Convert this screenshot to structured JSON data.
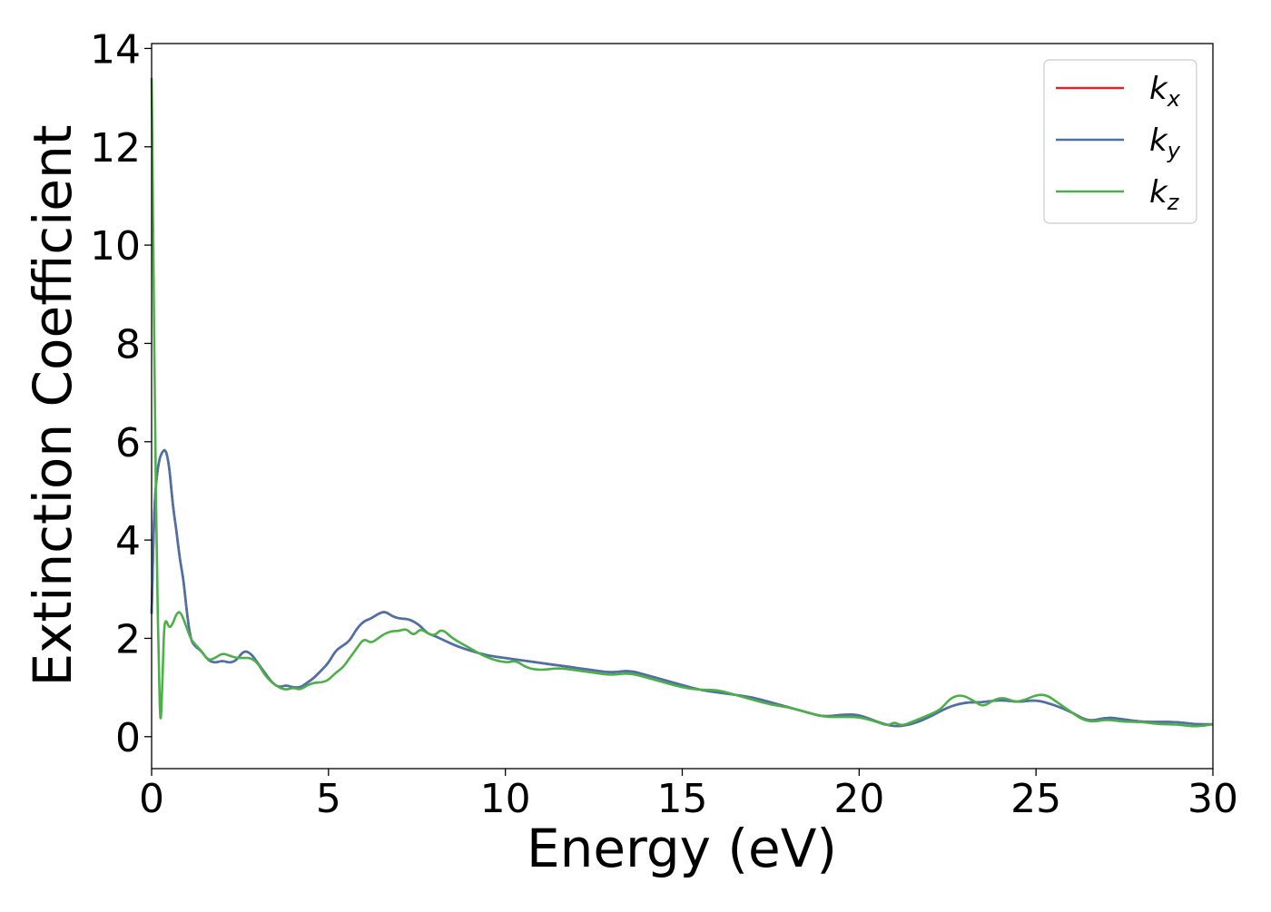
{
  "chart_data": {
    "type": "line",
    "xlabel": "Energy (eV)",
    "ylabel": "Extinction Coefficient",
    "xlim": [
      0,
      30
    ],
    "ylim": [
      -0.65,
      14.1
    ],
    "xticks": [
      0,
      5,
      10,
      15,
      20,
      25,
      30
    ],
    "yticks": [
      0,
      2,
      4,
      6,
      8,
      10,
      12,
      14
    ],
    "grid": false,
    "legend": "top-right",
    "series": [
      {
        "name": "k_x",
        "label_main": "k",
        "label_sub": "x",
        "color": "#d62728",
        "x": [
          0,
          0.05,
          0.1,
          0.2,
          0.3,
          0.4,
          0.5,
          0.6,
          0.7,
          0.8,
          0.9,
          1.0,
          1.1,
          1.2,
          1.4,
          1.6,
          1.8,
          2.0,
          2.2,
          2.4,
          2.6,
          2.8,
          3.0,
          3.2,
          3.4,
          3.6,
          3.8,
          4.0,
          4.2,
          4.4,
          4.6,
          4.8,
          5.0,
          5.2,
          5.4,
          5.6,
          5.8,
          6.0,
          6.2,
          6.4,
          6.6,
          6.8,
          7.0,
          7.2,
          7.4,
          7.6,
          7.8,
          8.0,
          8.3,
          8.6,
          9.0,
          9.5,
          10.0,
          10.5,
          11.0,
          11.5,
          12.0,
          12.5,
          13.0,
          13.5,
          14.0,
          14.5,
          15.0,
          15.5,
          16.0,
          16.5,
          17.0,
          17.5,
          18.0,
          18.5,
          19.0,
          19.5,
          20.0,
          20.5,
          21.0,
          21.5,
          22.0,
          22.5,
          23.0,
          23.5,
          24.0,
          24.5,
          25.0,
          25.5,
          26.0,
          26.5,
          27.0,
          27.5,
          28.0,
          28.5,
          29.0,
          29.5,
          30.0
        ],
        "y": [
          2.5,
          4.0,
          5.0,
          5.6,
          5.8,
          5.85,
          5.5,
          4.7,
          4.2,
          3.6,
          3.2,
          2.5,
          2.0,
          1.85,
          1.75,
          1.55,
          1.5,
          1.55,
          1.5,
          1.55,
          1.75,
          1.7,
          1.5,
          1.3,
          1.1,
          1.0,
          1.05,
          1.0,
          1.0,
          1.1,
          1.2,
          1.35,
          1.5,
          1.75,
          1.85,
          1.95,
          2.2,
          2.35,
          2.4,
          2.5,
          2.55,
          2.45,
          2.4,
          2.4,
          2.35,
          2.25,
          2.1,
          2.05,
          1.95,
          1.85,
          1.75,
          1.65,
          1.6,
          1.55,
          1.5,
          1.45,
          1.4,
          1.35,
          1.3,
          1.35,
          1.25,
          1.15,
          1.05,
          0.95,
          0.9,
          0.85,
          0.8,
          0.7,
          0.6,
          0.5,
          0.4,
          0.45,
          0.45,
          0.3,
          0.2,
          0.25,
          0.4,
          0.6,
          0.7,
          0.7,
          0.75,
          0.7,
          0.75,
          0.65,
          0.5,
          0.3,
          0.4,
          0.35,
          0.3,
          0.3,
          0.3,
          0.25,
          0.25
        ]
      },
      {
        "name": "k_y",
        "label_main": "k",
        "label_sub": "y",
        "color": "#4a72a8",
        "x": [
          0,
          0.05,
          0.1,
          0.2,
          0.3,
          0.4,
          0.5,
          0.6,
          0.7,
          0.8,
          0.9,
          1.0,
          1.1,
          1.2,
          1.4,
          1.6,
          1.8,
          2.0,
          2.2,
          2.4,
          2.6,
          2.8,
          3.0,
          3.2,
          3.4,
          3.6,
          3.8,
          4.0,
          4.2,
          4.4,
          4.6,
          4.8,
          5.0,
          5.2,
          5.4,
          5.6,
          5.8,
          6.0,
          6.2,
          6.4,
          6.6,
          6.8,
          7.0,
          7.2,
          7.4,
          7.6,
          7.8,
          8.0,
          8.3,
          8.6,
          9.0,
          9.5,
          10.0,
          10.5,
          11.0,
          11.5,
          12.0,
          12.5,
          13.0,
          13.5,
          14.0,
          14.5,
          15.0,
          15.5,
          16.0,
          16.5,
          17.0,
          17.5,
          18.0,
          18.5,
          19.0,
          19.5,
          20.0,
          20.5,
          21.0,
          21.5,
          22.0,
          22.5,
          23.0,
          23.5,
          24.0,
          24.5,
          25.0,
          25.5,
          26.0,
          26.5,
          27.0,
          27.5,
          28.0,
          28.5,
          29.0,
          29.5,
          30.0
        ],
        "y": [
          2.5,
          4.0,
          5.0,
          5.6,
          5.8,
          5.85,
          5.5,
          4.7,
          4.2,
          3.6,
          3.2,
          2.5,
          2.0,
          1.85,
          1.75,
          1.55,
          1.5,
          1.55,
          1.5,
          1.55,
          1.75,
          1.7,
          1.5,
          1.3,
          1.1,
          1.0,
          1.05,
          1.0,
          1.0,
          1.1,
          1.2,
          1.35,
          1.5,
          1.75,
          1.85,
          1.95,
          2.2,
          2.35,
          2.4,
          2.5,
          2.55,
          2.45,
          2.4,
          2.4,
          2.35,
          2.25,
          2.1,
          2.05,
          1.95,
          1.85,
          1.75,
          1.65,
          1.6,
          1.55,
          1.5,
          1.45,
          1.4,
          1.35,
          1.3,
          1.35,
          1.25,
          1.15,
          1.05,
          0.95,
          0.9,
          0.85,
          0.8,
          0.7,
          0.6,
          0.5,
          0.4,
          0.45,
          0.45,
          0.3,
          0.2,
          0.25,
          0.4,
          0.6,
          0.7,
          0.7,
          0.75,
          0.7,
          0.75,
          0.65,
          0.5,
          0.3,
          0.4,
          0.35,
          0.3,
          0.3,
          0.3,
          0.25,
          0.25
        ]
      },
      {
        "name": "k_z",
        "label_main": "k",
        "label_sub": "z",
        "color": "#4daf4a",
        "x": [
          0,
          0.05,
          0.1,
          0.15,
          0.2,
          0.25,
          0.3,
          0.35,
          0.4,
          0.5,
          0.6,
          0.7,
          0.8,
          0.9,
          1.0,
          1.1,
          1.2,
          1.4,
          1.6,
          1.8,
          2.0,
          2.2,
          2.4,
          2.6,
          2.8,
          3.0,
          3.2,
          3.4,
          3.6,
          3.8,
          4.0,
          4.2,
          4.4,
          4.6,
          4.8,
          5.0,
          5.2,
          5.4,
          5.6,
          5.8,
          6.0,
          6.2,
          6.4,
          6.6,
          6.8,
          7.0,
          7.2,
          7.4,
          7.6,
          7.8,
          8.0,
          8.2,
          8.5,
          9.0,
          9.5,
          10.0,
          10.3,
          10.6,
          11.0,
          11.5,
          12.0,
          12.5,
          13.0,
          13.5,
          14.0,
          14.5,
          15.0,
          15.5,
          16.0,
          16.5,
          17.0,
          17.5,
          18.0,
          18.5,
          19.0,
          19.5,
          20.0,
          20.5,
          20.8,
          21.0,
          21.2,
          21.5,
          22.0,
          22.3,
          22.6,
          22.9,
          23.2,
          23.5,
          23.8,
          24.1,
          24.4,
          24.7,
          25.0,
          25.3,
          25.6,
          26.0,
          26.3,
          26.6,
          27.0,
          27.5,
          28.0,
          28.5,
          29.0,
          29.5,
          30.0
        ],
        "y": [
          13.4,
          10.0,
          6.0,
          3.5,
          1.5,
          0.1,
          1.0,
          2.2,
          2.4,
          2.2,
          2.3,
          2.5,
          2.55,
          2.4,
          2.2,
          2.0,
          1.9,
          1.75,
          1.55,
          1.6,
          1.7,
          1.65,
          1.6,
          1.6,
          1.6,
          1.5,
          1.25,
          1.1,
          1.0,
          0.95,
          1.0,
          0.95,
          1.05,
          1.1,
          1.1,
          1.15,
          1.3,
          1.4,
          1.6,
          1.8,
          2.0,
          1.9,
          2.0,
          2.1,
          2.15,
          2.15,
          2.2,
          2.05,
          2.2,
          2.1,
          2.05,
          2.2,
          2.0,
          1.8,
          1.6,
          1.5,
          1.55,
          1.4,
          1.35,
          1.4,
          1.35,
          1.3,
          1.25,
          1.3,
          1.2,
          1.1,
          1.0,
          0.95,
          0.95,
          0.85,
          0.75,
          0.65,
          0.6,
          0.5,
          0.4,
          0.4,
          0.4,
          0.3,
          0.22,
          0.3,
          0.22,
          0.3,
          0.45,
          0.55,
          0.8,
          0.85,
          0.75,
          0.6,
          0.75,
          0.8,
          0.7,
          0.75,
          0.85,
          0.85,
          0.7,
          0.5,
          0.35,
          0.3,
          0.35,
          0.3,
          0.3,
          0.25,
          0.25,
          0.2,
          0.25
        ]
      }
    ]
  }
}
